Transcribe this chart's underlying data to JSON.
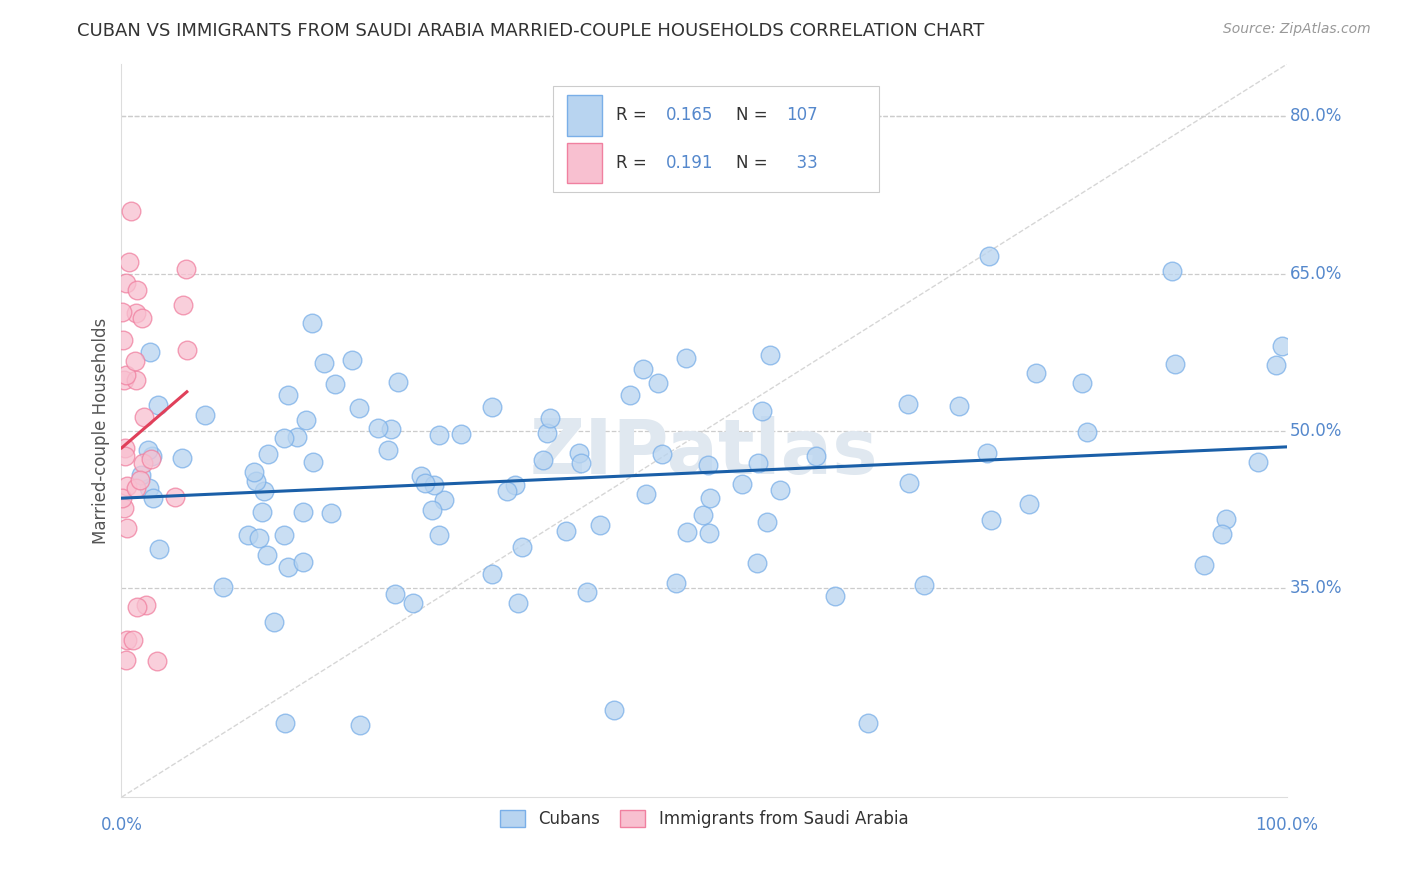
{
  "title": "CUBAN VS IMMIGRANTS FROM SAUDI ARABIA MARRIED-COUPLE HOUSEHOLDS CORRELATION CHART",
  "source": "Source: ZipAtlas.com",
  "ylabel": "Married-couple Households",
  "xlim": [
    0,
    1
  ],
  "ylim": [
    0.15,
    0.85
  ],
  "ytick_values": [
    0.35,
    0.5,
    0.65,
    0.8
  ],
  "ytick_labels": [
    "35.0%",
    "50.0%",
    "65.0%",
    "80.0%"
  ],
  "cubans_R": 0.165,
  "cubans_N": 107,
  "saudi_R": 0.191,
  "saudi_N": 33,
  "legend_label1": "Cubans",
  "legend_label2": "Immigrants from Saudi Arabia",
  "blue_face": "#b8d4f0",
  "blue_edge": "#7aafe8",
  "pink_face": "#f8c0d0",
  "pink_edge": "#f080a0",
  "trendline_blue": "#1a5fa8",
  "trendline_pink": "#e0405a",
  "trendline_diag": "#cccccc",
  "background": "#ffffff",
  "grid_color": "#cccccc",
  "title_color": "#333333",
  "axis_label_color": "#555555",
  "tick_color": "#5588cc",
  "watermark_color": "#e0e8f0"
}
